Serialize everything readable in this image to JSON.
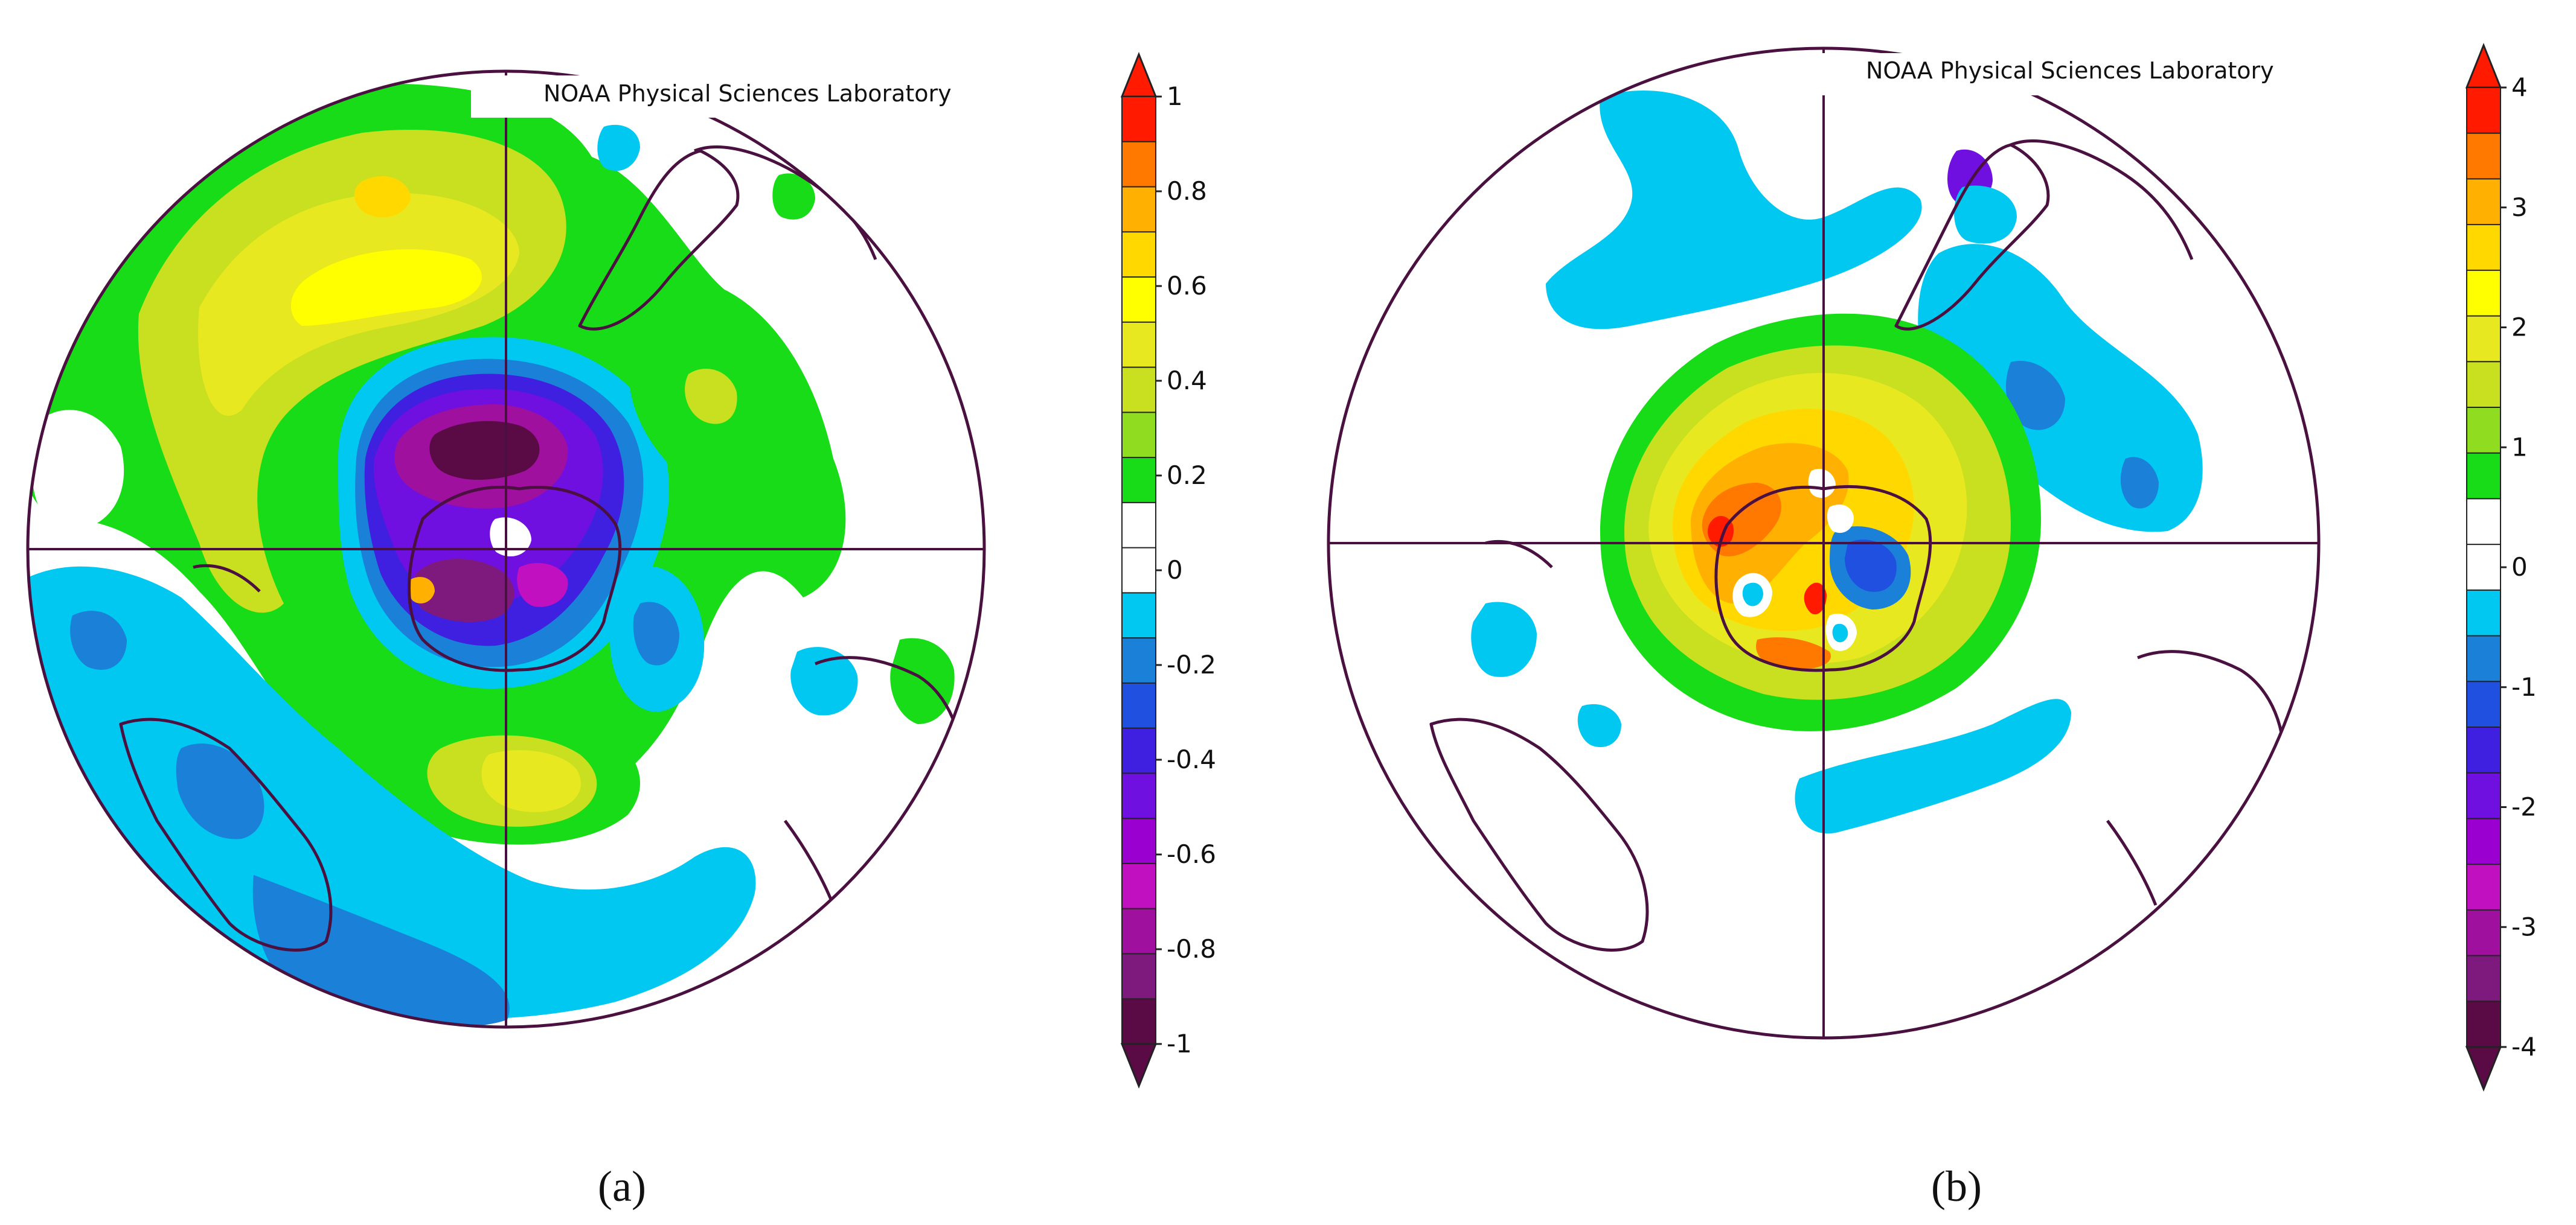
{
  "credit_text": "NOAA Physical Sciences Laboratory",
  "panels": [
    {
      "id": "a",
      "label": "(a)",
      "label_letter": "a",
      "scale_range": [
        -1,
        1
      ],
      "colorbar_ticks": [
        "1",
        "0.8",
        "0.6",
        "0.4",
        "0.2",
        "0",
        "-0.2",
        "-0.4",
        "-0.6",
        "-0.8",
        "-1"
      ],
      "colors": {
        "c_m1": "#5a0a45",
        "c_m09": "#7e1a7e",
        "c_m08": "#a0109f",
        "c_m07": "#c010c0",
        "c_m06": "#9a00d0",
        "c_m05": "#7010e0",
        "c_m04": "#4020e0",
        "c_m03": "#2050e0",
        "c_m02": "#1a80d8",
        "c_m01": "#00c8f0",
        "c_0": "#ffffff",
        "c_p01": "#ffffff",
        "c_p02": "#18dc18",
        "c_p03": "#90dc20",
        "c_p04": "#c8e020",
        "c_p05": "#e8e820",
        "c_p06": "#ffff00",
        "c_p07": "#ffd800",
        "c_p08": "#ffb000",
        "c_p09": "#ff7800",
        "c_p1": "#ff1a00"
      }
    },
    {
      "id": "b",
      "label": "(b)",
      "label_letter": "b",
      "scale_range": [
        -4,
        4
      ],
      "colorbar_ticks": [
        "4",
        "3",
        "2",
        "1",
        "0",
        "-1",
        "-2",
        "-3",
        "-4"
      ],
      "colors": {
        "c_m1": "#5a0a45",
        "c_m09": "#7e1a7e",
        "c_m08": "#a0109f",
        "c_m07": "#c010c0",
        "c_m06": "#9a00d0",
        "c_m05": "#7010e0",
        "c_m04": "#4020e0",
        "c_m03": "#2050e0",
        "c_m02": "#1a80d8",
        "c_m01": "#00c8f0",
        "c_0": "#ffffff",
        "c_p01": "#ffffff",
        "c_p02": "#18dc18",
        "c_p03": "#90dc20",
        "c_p04": "#c8e020",
        "c_p05": "#e8e820",
        "c_p06": "#ffff00",
        "c_p07": "#ffd800",
        "c_p08": "#ffb000",
        "c_p09": "#ff7800",
        "c_p1": "#ff1a00"
      }
    }
  ]
}
